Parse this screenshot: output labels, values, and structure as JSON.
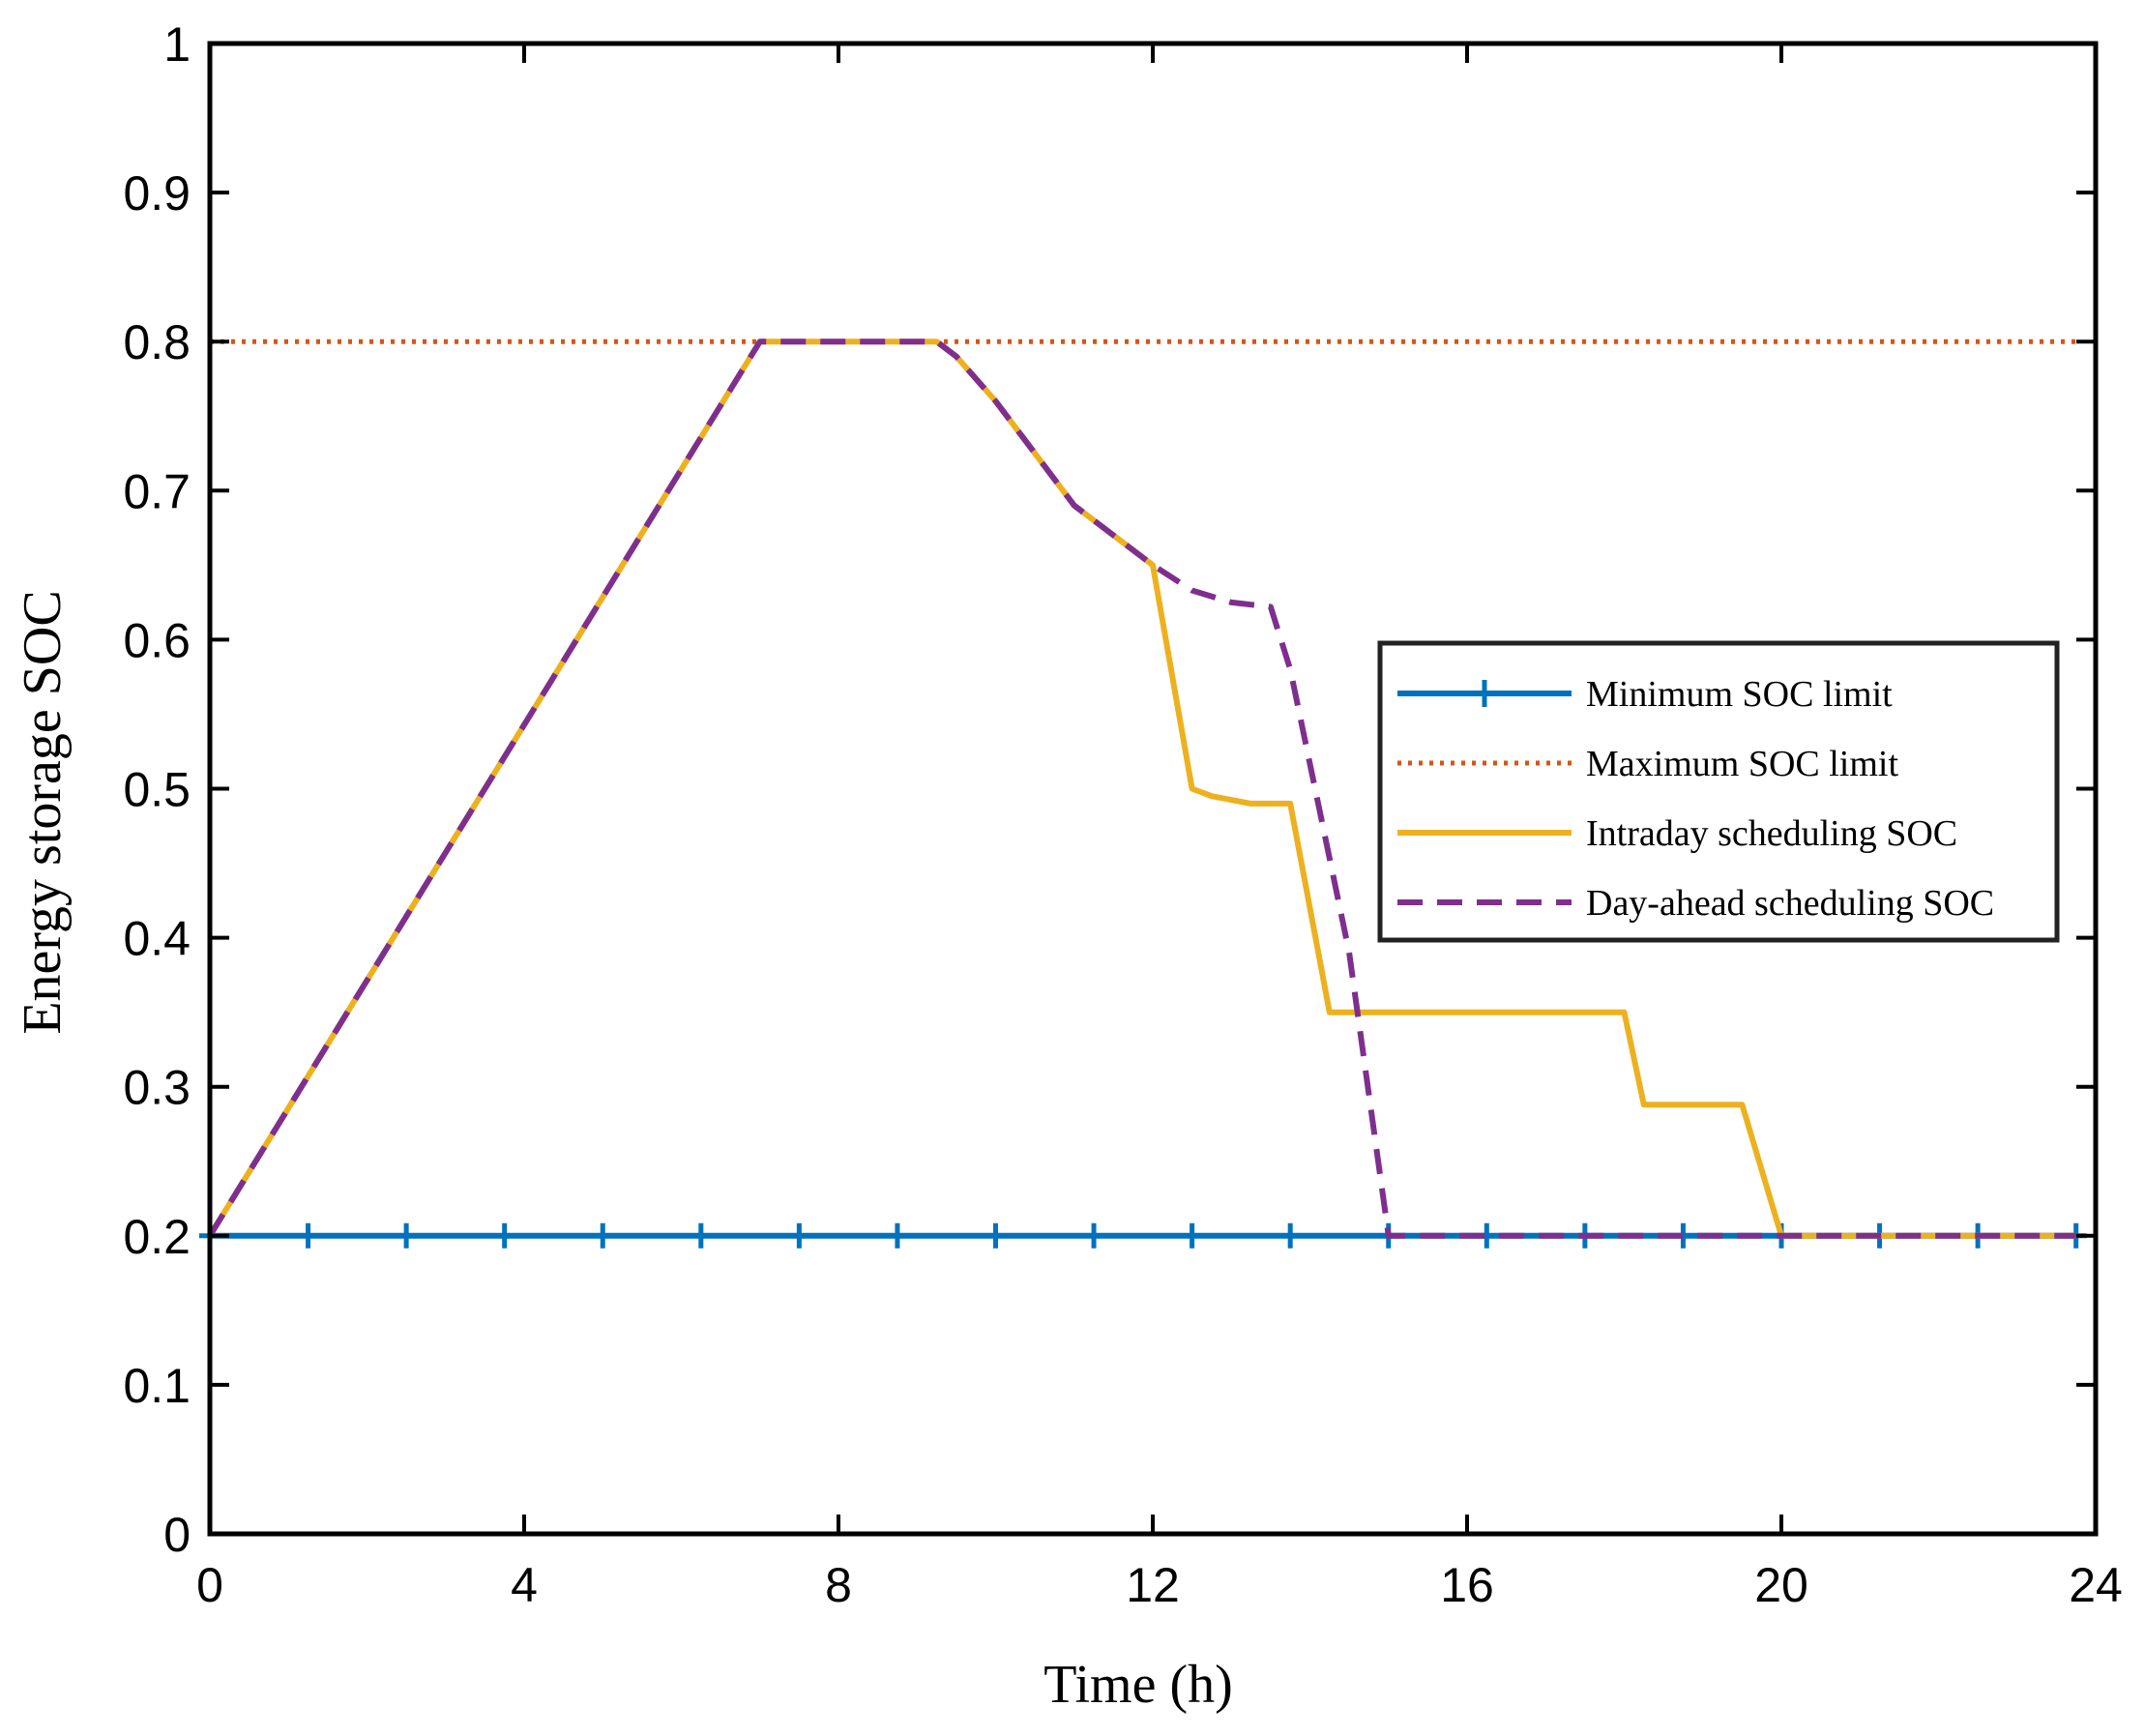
{
  "chart_data": {
    "type": "line",
    "title": "",
    "xlabel": "Time (h)",
    "ylabel": "Energy storage SOC",
    "xlim": [
      0,
      24
    ],
    "ylim": [
      0,
      1
    ],
    "xticks": [
      0,
      4,
      8,
      12,
      16,
      20,
      24
    ],
    "xtick_labels": [
      "0",
      "4",
      "8",
      "12",
      "16",
      "20",
      "24"
    ],
    "yticks": [
      0,
      0.1,
      0.2,
      0.3,
      0.4,
      0.5,
      0.6,
      0.7,
      0.8,
      0.9,
      1
    ],
    "ytick_labels": [
      "0",
      "0.1",
      "0.2",
      "0.3",
      "0.4",
      "0.5",
      "0.6",
      "0.7",
      "0.8",
      "0.9",
      "1"
    ],
    "grid": false,
    "legend_position": "center-right",
    "series": [
      {
        "name": "Minimum SOC limit",
        "color": "#0072BD",
        "style": "solid-plus-markers",
        "x": [
          0,
          1.25,
          2.5,
          3.75,
          5,
          6.25,
          7.5,
          8.75,
          10,
          11.25,
          12.5,
          13.75,
          15,
          16.25,
          17.5,
          18.75,
          20,
          21.25,
          22.5,
          23.75
        ],
        "y": [
          0.2,
          0.2,
          0.2,
          0.2,
          0.2,
          0.2,
          0.2,
          0.2,
          0.2,
          0.2,
          0.2,
          0.2,
          0.2,
          0.2,
          0.2,
          0.2,
          0.2,
          0.2,
          0.2,
          0.2
        ]
      },
      {
        "name": "Maximum SOC limit",
        "color": "#D95319",
        "style": "dotted",
        "x": [
          0,
          23.75
        ],
        "y": [
          0.8,
          0.8
        ]
      },
      {
        "name": "Intraday scheduling SOC",
        "color": "#EDB120",
        "style": "solid",
        "x": [
          0,
          7,
          9.25,
          9.5,
          10,
          11,
          12,
          12.5,
          12.75,
          13.25,
          13.75,
          14.25,
          18,
          18.25,
          19.5,
          20,
          23.75
        ],
        "y": [
          0.2,
          0.8,
          0.8,
          0.79,
          0.76,
          0.69,
          0.65,
          0.5,
          0.495,
          0.49,
          0.49,
          0.35,
          0.35,
          0.288,
          0.288,
          0.2,
          0.2
        ]
      },
      {
        "name": "Day-ahead scheduling SOC",
        "color": "#7E2F8E",
        "style": "dashed",
        "x": [
          0,
          7,
          9.25,
          9.5,
          10,
          11,
          12,
          12.5,
          13,
          13.5,
          13.75,
          14.5,
          15,
          23.75
        ],
        "y": [
          0.2,
          0.8,
          0.8,
          0.79,
          0.76,
          0.69,
          0.65,
          0.633,
          0.625,
          0.622,
          0.58,
          0.39,
          0.2,
          0.2
        ]
      }
    ]
  }
}
